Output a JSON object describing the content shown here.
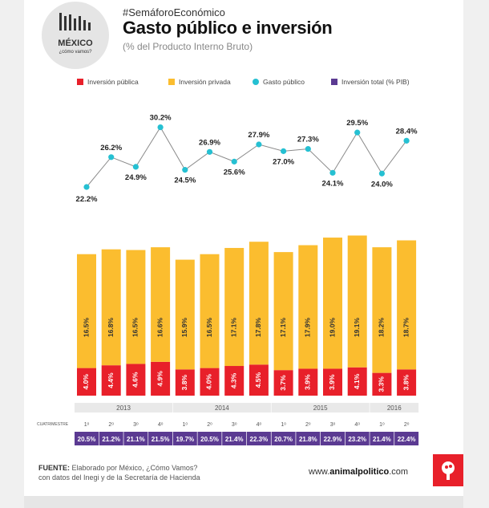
{
  "header": {
    "hashtag": "#SemáforoEconómico",
    "title": "Gasto público e inversión",
    "subtitle": "(% del Producto Interno Bruto)"
  },
  "logo": {
    "title": "MÉXICO",
    "subtitle": "¿cómo vamos?"
  },
  "footer": {
    "source_label": "FUENTE:",
    "source_line1": "Elaborado por México, ¿Cómo Vamos?",
    "source_line2": "con datos del Inegi y de la Secretaría de Hacienda",
    "site_prefix": "www.",
    "site_brand": "animalpolitico",
    "site_suffix": ".com"
  },
  "colors": {
    "publica": "#e8202a",
    "privada": "#fbbd2f",
    "gasto": "#25c0d2",
    "total": "#5b3a92",
    "line": "#8a8a8a"
  },
  "chart_data": {
    "type": "bar",
    "legend": [
      "Inversión pública",
      "Inversión privada",
      "Gasto público",
      "Inversión total (% PIB)"
    ],
    "years": [
      {
        "label": "2013",
        "count": 4
      },
      {
        "label": "2014",
        "count": 4
      },
      {
        "label": "2015",
        "count": 4
      },
      {
        "label": "2016",
        "count": 2
      }
    ],
    "quarter_header": "CUATRIMESTRE",
    "categories": [
      "1o",
      "2o",
      "3o",
      "4o",
      "1o",
      "2o",
      "3o",
      "4o",
      "1o",
      "2o",
      "3o",
      "4o",
      "1o",
      "2o"
    ],
    "category_labels": [
      "1ᵒ",
      "2ᵒ",
      "3ᵒ",
      "4ᵒ",
      "1ᵒ",
      "2ᵒ",
      "3ᵒ",
      "4ᵒ",
      "1ᵒ",
      "2ᵒ",
      "3ᵒ",
      "4ᵒ",
      "1ᵒ",
      "2ᵒ"
    ],
    "series": [
      {
        "name": "Inversión pública",
        "values": [
          4.0,
          4.4,
          4.6,
          4.9,
          3.8,
          4.0,
          4.3,
          4.5,
          3.7,
          3.9,
          3.9,
          4.1,
          3.3,
          3.8
        ],
        "labels": [
          "4.0%",
          "4.4%",
          "4.6%",
          "4.9%",
          "3.8%",
          "4.0%",
          "4.3%",
          "4.5%",
          "3.7%",
          "3.9%",
          "3.9%",
          "4.1%",
          "3.3%",
          "3.8%"
        ]
      },
      {
        "name": "Inversión privada",
        "values": [
          16.5,
          16.8,
          16.5,
          16.6,
          15.9,
          16.5,
          17.1,
          17.8,
          17.1,
          17.9,
          19.0,
          19.1,
          18.2,
          18.7
        ],
        "labels": [
          "16.5%",
          "16.8%",
          "16.5%",
          "16.6%",
          "15.9%",
          "16.5%",
          "17.1%",
          "17.8%",
          "17.1%",
          "17.9%",
          "19.0%",
          "19.1%",
          "18.2%",
          "18.7%"
        ]
      },
      {
        "name": "Gasto público",
        "values": [
          22.2,
          26.2,
          24.9,
          30.2,
          24.5,
          26.9,
          25.6,
          27.9,
          27.0,
          27.3,
          24.1,
          29.5,
          24.0,
          28.4
        ],
        "labels": [
          "22.2%",
          "26.2%",
          "24.9%",
          "30.2%",
          "24.5%",
          "26.9%",
          "25.6%",
          "27.9%",
          "27.0%",
          "27.3%",
          "24.1%",
          "29.5%",
          "24.0%",
          "28.4%"
        ]
      },
      {
        "name": "Inversión total (% PIB)",
        "values": [
          20.5,
          21.2,
          21.1,
          21.5,
          19.7,
          20.5,
          21.4,
          22.3,
          20.7,
          21.8,
          22.9,
          23.2,
          21.4,
          22.4
        ],
        "labels": [
          "20.5%",
          "21.2%",
          "21.1%",
          "21.5%",
          "19.7%",
          "20.5%",
          "21.4%",
          "22.3%",
          "20.7%",
          "21.8%",
          "22.9%",
          "23.2%",
          "21.4%",
          "22.4%"
        ]
      }
    ]
  }
}
